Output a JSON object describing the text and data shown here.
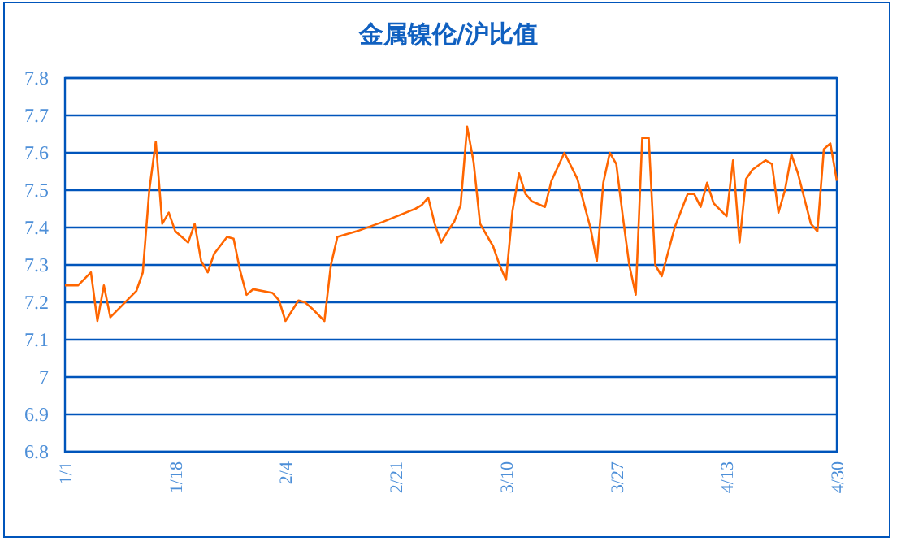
{
  "chart_data": {
    "type": "line",
    "title": "金属镍伦/沪比值",
    "x": [
      "--01-01",
      "--01-03",
      "--01-05",
      "--01-06",
      "--01-07",
      "--01-08",
      "--01-12",
      "--01-13",
      "--01-14",
      "--01-15",
      "--01-16",
      "--01-17",
      "--01-18",
      "--01-20",
      "--01-21",
      "--01-22",
      "--01-23",
      "--01-24",
      "--01-26",
      "--01-27",
      "--01-28",
      "--01-29",
      "--01-30",
      "--02-02",
      "--02-03",
      "--02-04",
      "--02-06",
      "--02-07",
      "--02-08",
      "--02-10",
      "--02-11",
      "--02-12",
      "--02-15",
      "--02-19",
      "--02-24",
      "--02-25",
      "--02-26",
      "--02-27",
      "--02-28",
      "--03-01",
      "--03-02",
      "--03-03",
      "--03-04",
      "--03-05",
      "--03-06",
      "--03-08",
      "--03-09",
      "--03-10",
      "--03-11",
      "--03-12",
      "--03-13",
      "--03-14",
      "--03-16",
      "--03-17",
      "--03-19",
      "--03-21",
      "--03-23",
      "--03-24",
      "--03-25",
      "--03-26",
      "--03-27",
      "--03-28",
      "--03-29",
      "--03-30",
      "--03-31",
      "--04-01",
      "--04-02",
      "--04-03",
      "--04-05",
      "--04-07",
      "--04-08",
      "--04-09",
      "--04-10",
      "--04-11",
      "--04-13",
      "--04-14",
      "--04-15",
      "--04-16",
      "--04-17",
      "--04-19",
      "--04-20",
      "--04-21",
      "--04-22",
      "--04-23",
      "--04-24",
      "--04-26",
      "--04-27",
      "--04-28",
      "--04-29",
      "--04-30"
    ],
    "series": [
      {
        "color": "#ff6600",
        "values": [
          7.245,
          7.245,
          7.28,
          7.15,
          7.245,
          7.16,
          7.23,
          7.28,
          7.5,
          7.63,
          7.41,
          7.44,
          7.39,
          7.36,
          7.41,
          7.31,
          7.28,
          7.33,
          7.375,
          7.37,
          7.285,
          7.22,
          7.235,
          7.225,
          7.205,
          7.15,
          7.205,
          7.2,
          7.185,
          7.15,
          7.3,
          7.375,
          7.39,
          7.415,
          7.45,
          7.46,
          7.48,
          7.41,
          7.36,
          7.39,
          7.415,
          7.46,
          7.67,
          7.575,
          7.41,
          7.35,
          7.3,
          7.26,
          7.445,
          7.545,
          7.49,
          7.47,
          7.455,
          7.525,
          7.6,
          7.53,
          7.4,
          7.31,
          7.52,
          7.6,
          7.57,
          7.43,
          7.3,
          7.22,
          7.64,
          7.64,
          7.3,
          7.27,
          7.4,
          7.49,
          7.49,
          7.455,
          7.52,
          7.465,
          7.43,
          7.58,
          7.36,
          7.53,
          7.555,
          7.58,
          7.57,
          7.44,
          7.5,
          7.595,
          7.545,
          7.41,
          7.39,
          7.61,
          7.625,
          7.525
        ]
      }
    ],
    "xlim": [
      "--01-01",
      "--04-30"
    ],
    "xticks": [
      {
        "value": "--01-01",
        "label": "1/1"
      },
      {
        "value": "--01-18",
        "label": "1/18"
      },
      {
        "value": "--02-04",
        "label": "2/4"
      },
      {
        "value": "--02-21",
        "label": "2/21"
      },
      {
        "value": "--03-10",
        "label": "3/10"
      },
      {
        "value": "--03-27",
        "label": "3/27"
      },
      {
        "value": "--04-13",
        "label": "4/13"
      },
      {
        "value": "--04-30",
        "label": "4/30"
      }
    ],
    "ylim": [
      6.8,
      7.8
    ],
    "yticks": [
      6.8,
      6.9,
      7,
      7.1,
      7.2,
      7.3,
      7.4,
      7.5,
      7.6,
      7.7,
      7.8
    ],
    "grid": "y"
  }
}
